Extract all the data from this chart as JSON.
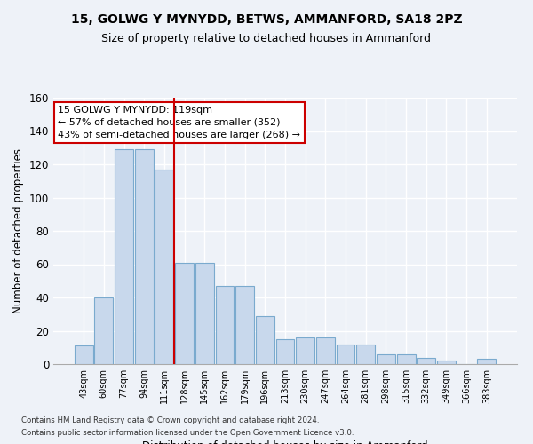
{
  "title": "15, GOLWG Y MYNYDD, BETWS, AMMANFORD, SA18 2PZ",
  "subtitle": "Size of property relative to detached houses in Ammanford",
  "xlabel": "Distribution of detached houses by size in Ammanford",
  "ylabel": "Number of detached properties",
  "categories": [
    "43sqm",
    "60sqm",
    "77sqm",
    "94sqm",
    "111sqm",
    "128sqm",
    "145sqm",
    "162sqm",
    "179sqm",
    "196sqm",
    "213sqm",
    "230sqm",
    "247sqm",
    "264sqm",
    "281sqm",
    "298sqm",
    "315sqm",
    "332sqm",
    "349sqm",
    "366sqm",
    "383sqm"
  ],
  "values": [
    11,
    40,
    129,
    129,
    117,
    61,
    61,
    47,
    47,
    29,
    15,
    16,
    16,
    12,
    12,
    6,
    6,
    4,
    2,
    0,
    3
  ],
  "bar_color": "#c8d8ec",
  "bar_edge_color": "#7aaace",
  "vline_color": "#cc0000",
  "annotation_line1": "15 GOLWG Y MYNYDD: 119sqm",
  "annotation_line2": "← 57% of detached houses are smaller (352)",
  "annotation_line3": "43% of semi-detached houses are larger (268) →",
  "annotation_box_color": "#ffffff",
  "annotation_box_edge": "#cc0000",
  "ylim": [
    0,
    160
  ],
  "yticks": [
    0,
    20,
    40,
    60,
    80,
    100,
    120,
    140,
    160
  ],
  "footnote1": "Contains HM Land Registry data © Crown copyright and database right 2024.",
  "footnote2": "Contains public sector information licensed under the Open Government Licence v3.0.",
  "bg_color": "#eef2f8",
  "grid_color": "#ffffff",
  "title_fontsize": 10,
  "subtitle_fontsize": 9
}
